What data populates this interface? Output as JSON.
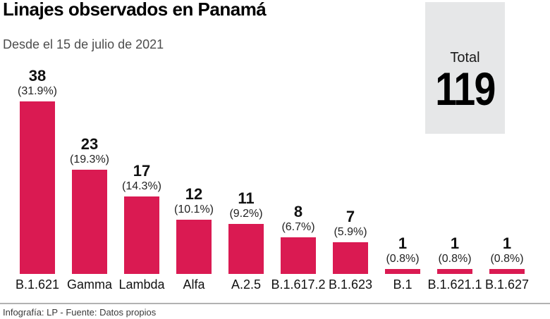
{
  "header": {
    "title": "Linajes observados en Panamá",
    "subtitle": "Desde el 15 de julio de 2021"
  },
  "total": {
    "label": "Total",
    "value": "119"
  },
  "footer": {
    "credit": "Infografía: LP - Fuente: Datos propios"
  },
  "colors": {
    "bar": "#da1a52",
    "total_box": "#e6e7e8"
  },
  "chart_data": {
    "type": "bar",
    "title": "Linajes observados en Panamá",
    "subtitle": "Desde el 15 de julio de 2021",
    "categories": [
      "B.1.621",
      "Gamma",
      "Lambda",
      "Alfa",
      "A.2.5",
      "B.1.617.2",
      "B.1.623",
      "B.1",
      "B.1.621.1",
      "B.1.627"
    ],
    "values": [
      38,
      23,
      17,
      12,
      11,
      8,
      7,
      1,
      1,
      1
    ],
    "percent_labels": [
      "(31.9%)",
      "(19.3%)",
      "(14.3%)",
      "(10.1%)",
      "(9.2%)",
      "(6.7%)",
      "(5.9%)",
      "(0.8%)",
      "(0.8%)",
      "(0.8%)"
    ],
    "total": 119,
    "xlabel": "",
    "ylabel": "",
    "ylim": [
      0,
      40
    ],
    "grid": false,
    "legend": "none",
    "bar_color": "#da1a52"
  }
}
